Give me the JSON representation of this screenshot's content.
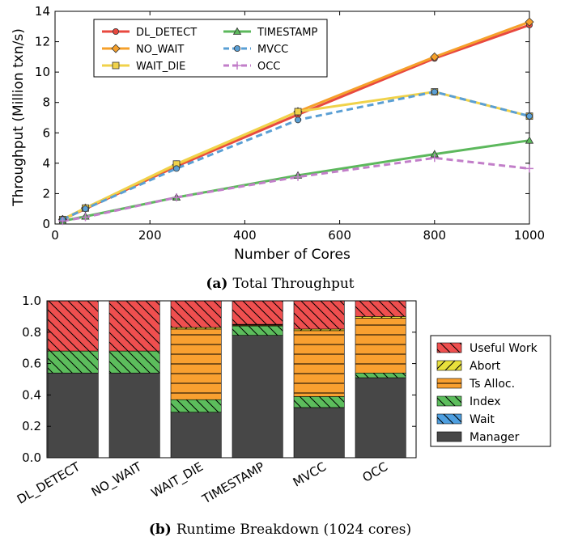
{
  "colors": {
    "dl_detect": "#e8483f",
    "no_wait": "#f5a02b",
    "wait_die": "#f0d24a",
    "timestamp": "#5cb85c",
    "mvcc": "#5a9fd4",
    "occ": "#c27ec9",
    "useful_work": "#ef4f4f",
    "abort": "#e8e03c",
    "ts_alloc": "#f9a030",
    "index": "#5cbd5c",
    "wait": "#4e9fe0",
    "manager": "#474747"
  },
  "chart_data": [
    {
      "type": "line",
      "title": "",
      "xlabel": "Number of Cores",
      "ylabel": "Throughput (Million txn/s)",
      "xlim": [
        0,
        1000
      ],
      "ylim": [
        0,
        14
      ],
      "xticks": [
        "0",
        "200",
        "400",
        "600",
        "800",
        "1000"
      ],
      "yticks": [
        "0",
        "2",
        "4",
        "6",
        "8",
        "10",
        "12",
        "14"
      ],
      "x": [
        16,
        64,
        256,
        512,
        800,
        1000
      ],
      "series": [
        {
          "name": "DL_DETECT",
          "values": [
            0.3,
            1.0,
            3.8,
            7.2,
            10.9,
            13.1
          ],
          "marker": "circle",
          "dash": "solid",
          "color_key": "dl_detect"
        },
        {
          "name": "NO_WAIT",
          "values": [
            0.3,
            1.05,
            3.9,
            7.4,
            11.0,
            13.3
          ],
          "marker": "diamond",
          "dash": "solid",
          "color_key": "no_wait"
        },
        {
          "name": "WAIT_DIE",
          "values": [
            0.3,
            1.05,
            3.95,
            7.4,
            8.7,
            7.1
          ],
          "marker": "square",
          "dash": "solid",
          "color_key": "wait_die"
        },
        {
          "name": "TIMESTAMP",
          "values": [
            0.2,
            0.5,
            1.75,
            3.2,
            4.6,
            5.5
          ],
          "marker": "triangle",
          "dash": "solid",
          "color_key": "timestamp"
        },
        {
          "name": "MVCC",
          "values": [
            0.3,
            1.0,
            3.65,
            6.85,
            8.7,
            7.1
          ],
          "marker": "circle",
          "dash": "dashed",
          "color_key": "mvcc"
        },
        {
          "name": "OCC",
          "values": [
            0.2,
            0.45,
            1.75,
            3.1,
            4.35,
            3.65
          ],
          "marker": "plus",
          "dash": "dashed",
          "color_key": "occ"
        }
      ],
      "legend_loc": "upper-left"
    },
    {
      "type": "bar",
      "stacked": true,
      "title": "",
      "xlabel": "",
      "ylabel": "",
      "ylim": [
        0.0,
        1.0
      ],
      "yticks": [
        "0.0",
        "0.2",
        "0.4",
        "0.6",
        "0.8",
        "1.0"
      ],
      "categories": [
        "DL_DETECT",
        "NO_WAIT",
        "WAIT_DIE",
        "TIMESTAMP",
        "MVCC",
        "OCC"
      ],
      "series": [
        {
          "name": "Manager",
          "values": [
            0.54,
            0.54,
            0.29,
            0.78,
            0.32,
            0.51
          ],
          "color_key": "manager",
          "hatch": "none"
        },
        {
          "name": "Wait",
          "values": [
            0.0,
            0.0,
            0.0,
            0.0,
            0.0,
            0.0
          ],
          "color_key": "wait",
          "hatch": "back"
        },
        {
          "name": "Index",
          "values": [
            0.14,
            0.14,
            0.08,
            0.06,
            0.07,
            0.03
          ],
          "color_key": "index",
          "hatch": "back"
        },
        {
          "name": "Ts Alloc.",
          "values": [
            0.0,
            0.0,
            0.45,
            0.01,
            0.42,
            0.35
          ],
          "color_key": "ts_alloc",
          "hatch": "horizontal"
        },
        {
          "name": "Abort",
          "values": [
            0.0,
            0.0,
            0.01,
            0.0,
            0.01,
            0.01
          ],
          "color_key": "abort",
          "hatch": "forward"
        },
        {
          "name": "Useful Work",
          "values": [
            0.32,
            0.32,
            0.17,
            0.15,
            0.18,
            0.1
          ],
          "color_key": "useful_work",
          "hatch": "back"
        }
      ],
      "legend_order": [
        "Useful Work",
        "Abort",
        "Ts Alloc.",
        "Index",
        "Wait",
        "Manager"
      ],
      "legend_loc": "right"
    }
  ],
  "captions": {
    "a_label": "(a)",
    "a_text": "Total Throughput",
    "b_label": "(b)",
    "b_text": "Runtime Breakdown (1024 cores)"
  }
}
